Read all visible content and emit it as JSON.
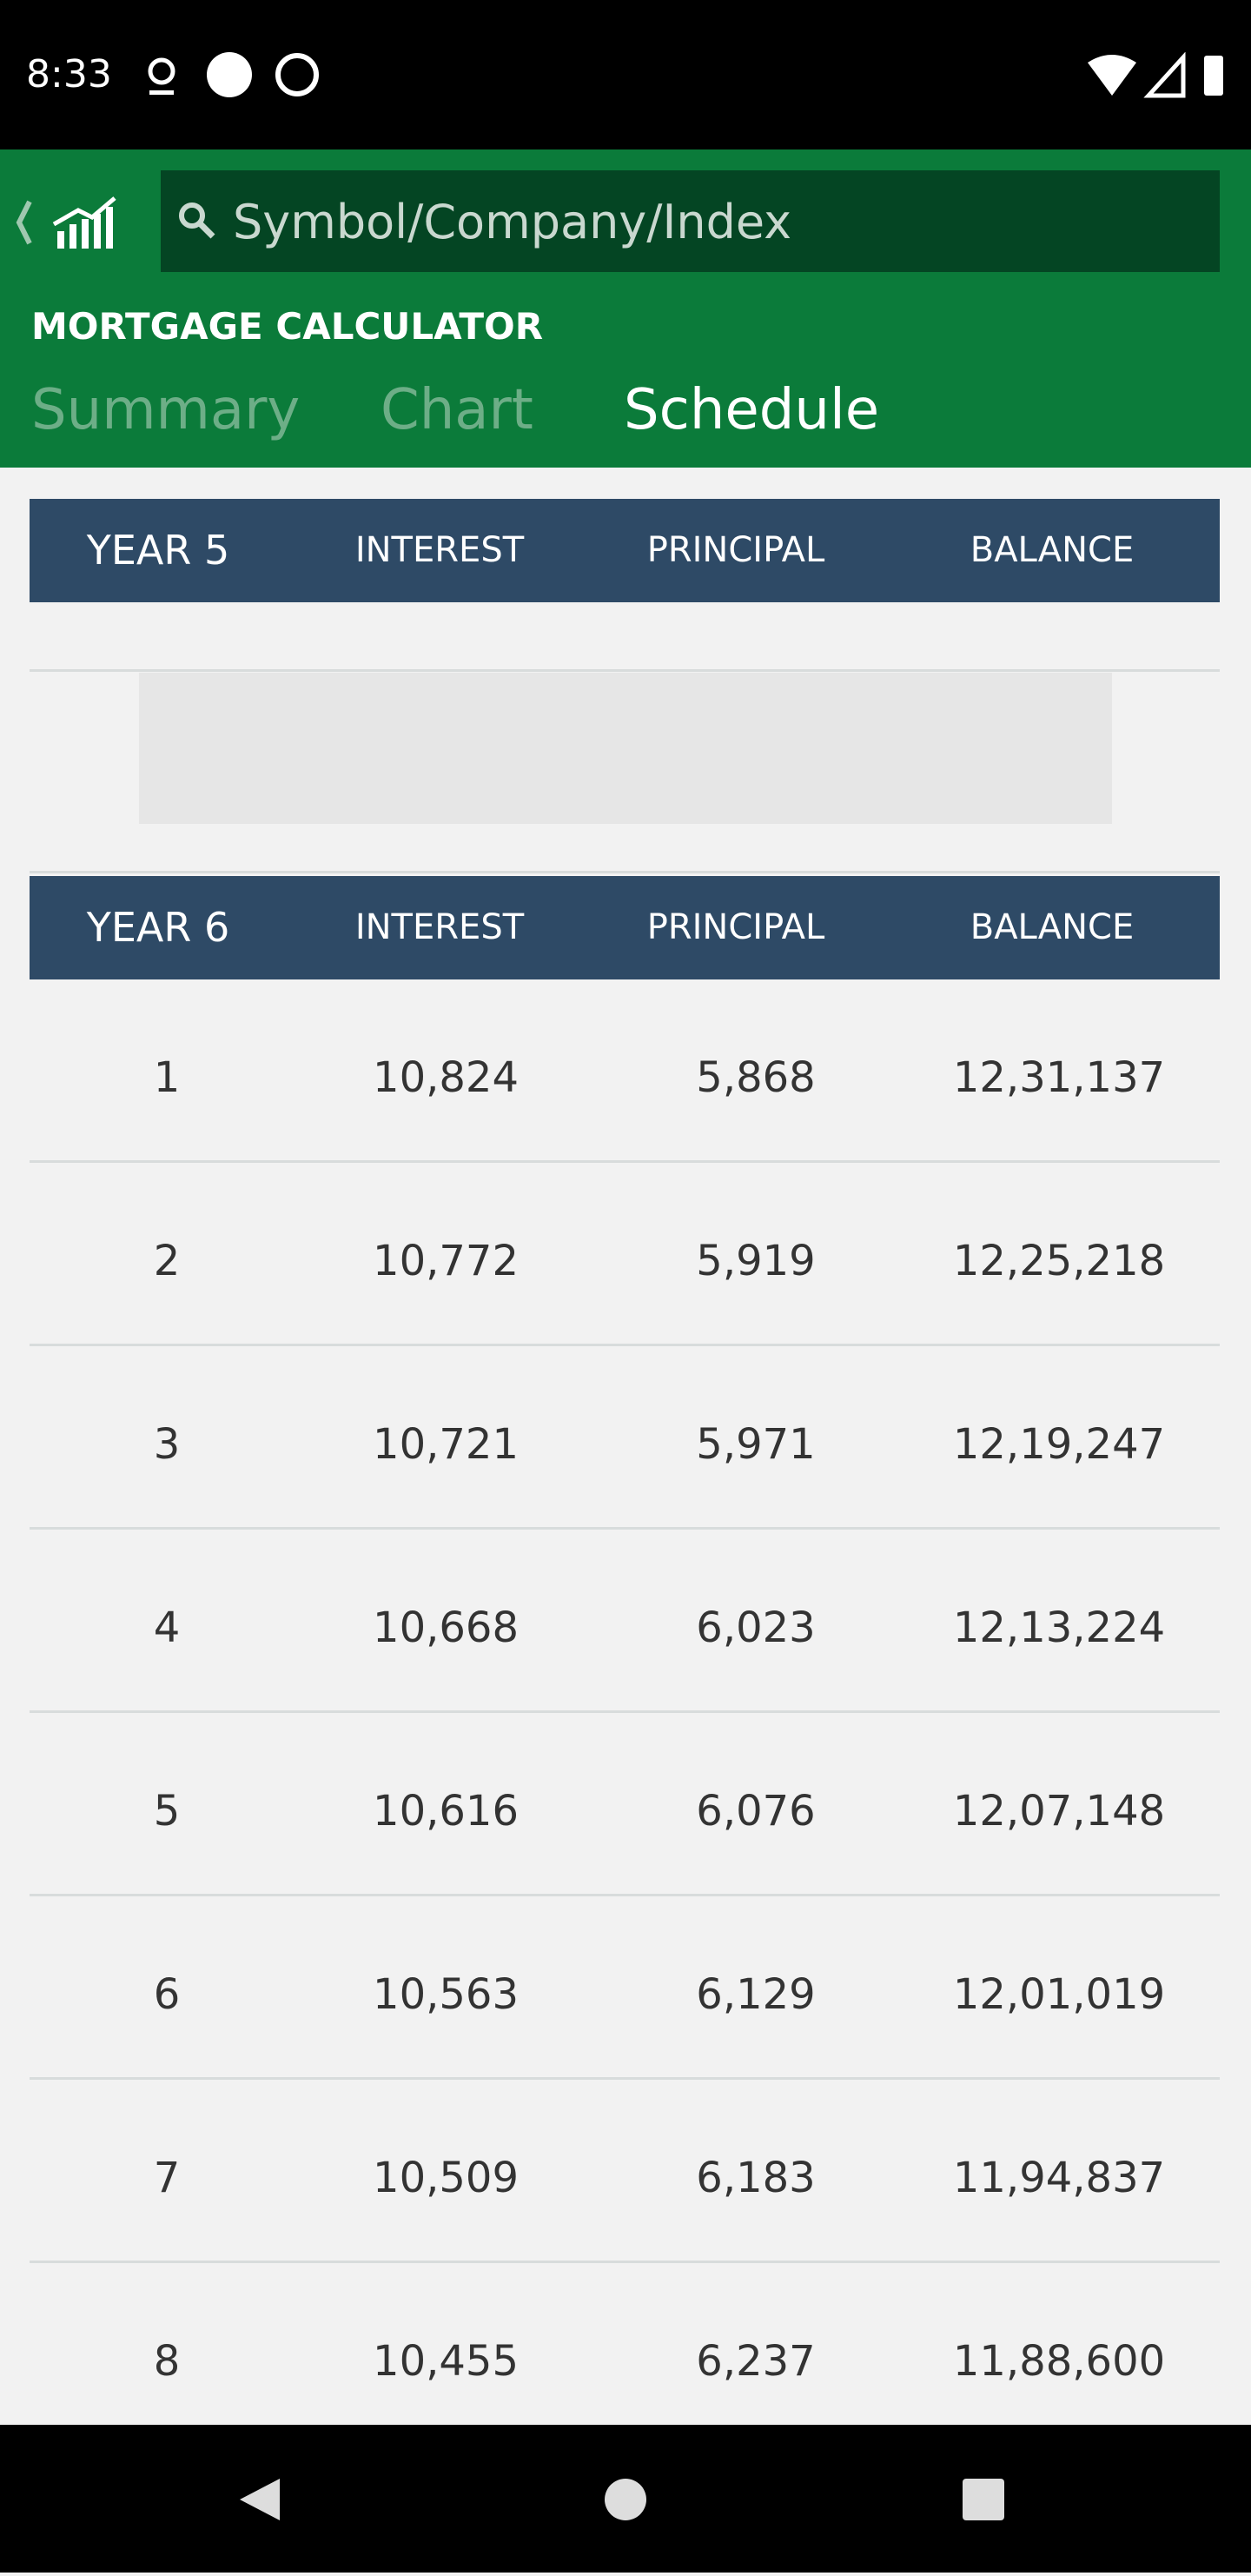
{
  "status_bar": {
    "time": "8:33"
  },
  "search": {
    "placeholder": "Symbol/Company/Index"
  },
  "header": {
    "title": "MORTGAGE CALCULATOR",
    "tabs": [
      "Summary",
      "Chart",
      "Schedule"
    ],
    "active_tab": 2
  },
  "tables": [
    {
      "columns": [
        "YEAR 5",
        "INTEREST",
        "PRINCIPAL",
        "BALANCE"
      ],
      "rows": []
    },
    {
      "columns": [
        "YEAR 6",
        "INTEREST",
        "PRINCIPAL",
        "BALANCE"
      ],
      "rows": [
        [
          "1",
          "10,824",
          "5,868",
          "12,31,137"
        ],
        [
          "2",
          "10,772",
          "5,919",
          "12,25,218"
        ],
        [
          "3",
          "10,721",
          "5,971",
          "12,19,247"
        ],
        [
          "4",
          "10,668",
          "6,023",
          "12,13,224"
        ],
        [
          "5",
          "10,616",
          "6,076",
          "12,07,148"
        ],
        [
          "6",
          "10,563",
          "6,129",
          "12,01,019"
        ],
        [
          "7",
          "10,509",
          "6,183",
          "11,94,837"
        ],
        [
          "8",
          "10,455",
          "6,237",
          "11,88,600"
        ]
      ]
    }
  ]
}
